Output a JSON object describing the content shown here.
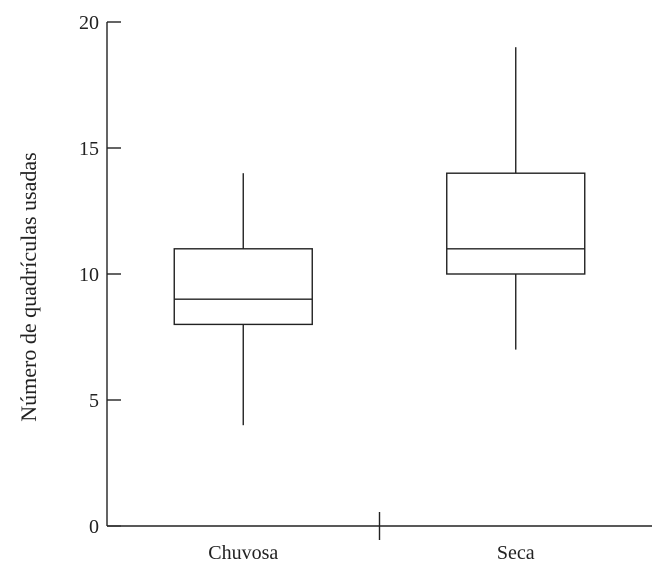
{
  "chart_data": {
    "type": "box",
    "title": "",
    "xlabel": "",
    "ylabel": "Número de quadrículas usadas",
    "ylim": [
      0,
      20
    ],
    "yticks": [
      0,
      5,
      10,
      15,
      20
    ],
    "grid": false,
    "legend": "none",
    "categories": [
      "Chuvosa",
      "Seca"
    ],
    "boxes": [
      {
        "category": "Chuvosa",
        "min": 4,
        "q1": 8,
        "median": 9,
        "q3": 11,
        "max": 14
      },
      {
        "category": "Seca",
        "min": 7,
        "q1": 10,
        "median": 11,
        "q3": 14,
        "max": 19
      }
    ],
    "color": "#222222"
  }
}
